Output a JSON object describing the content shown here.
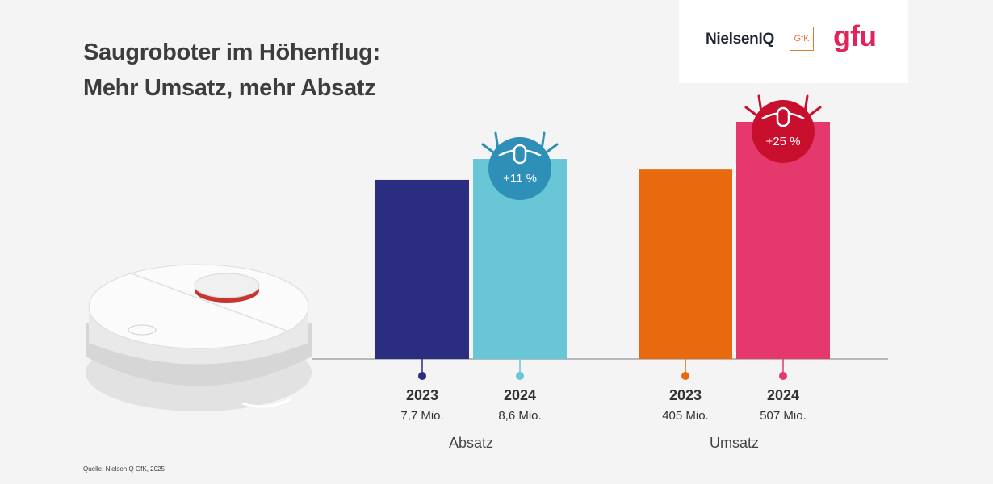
{
  "header": {
    "title_line1": "Saugroboter im Höhenflug:",
    "title_line2": "Mehr Umsatz, mehr Absatz"
  },
  "logos": {
    "niq": "NielsenIQ",
    "gfk": "GfK",
    "gfu": "gfu"
  },
  "source": "Quelle: NielsenIQ GfK, 2025",
  "chart_data": [
    {
      "type": "bar",
      "group_label": "Absatz",
      "categories": [
        "2023",
        "2024"
      ],
      "values": [
        7.7,
        8.6
      ],
      "value_labels": [
        "7,7 Mio.",
        "8,6 Mio."
      ],
      "colors": [
        "#2b2e80",
        "#69c6d6"
      ],
      "change_label": "+11 %",
      "change_color": "#2e8fb8"
    },
    {
      "type": "bar",
      "group_label": "Umsatz",
      "categories": [
        "2023",
        "2024"
      ],
      "values": [
        405,
        507
      ],
      "value_labels": [
        "405 Mio.",
        "507 Mio."
      ],
      "colors": [
        "#e96a0e",
        "#e5396d"
      ],
      "change_label": "+25 %",
      "change_color": "#c8102e"
    }
  ]
}
